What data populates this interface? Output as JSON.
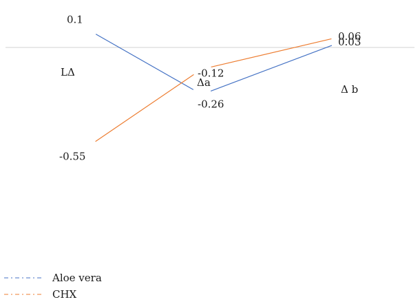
{
  "chart_data": {
    "type": "line",
    "categories": [
      "LΔ",
      "Δa",
      "Δ b"
    ],
    "series": [
      {
        "name": "Aloe vera",
        "values": [
          0.1,
          -0.26,
          0.03
        ],
        "color": "#4472c4"
      },
      {
        "name": "CHX",
        "values": [
          -0.55,
          -0.12,
          0.06
        ],
        "color": "#ed7d31"
      }
    ],
    "data_labels": [
      [
        "0.1",
        "-0.26",
        "0.03"
      ],
      [
        "-0.55",
        "-0.12",
        "0.06"
      ]
    ],
    "ylim": [
      -0.6,
      0.15
    ],
    "axis_line_at": 0,
    "axis_color": "#d0d0d0",
    "legend_position": "bottom-left",
    "legend_style": "dash-dot"
  }
}
